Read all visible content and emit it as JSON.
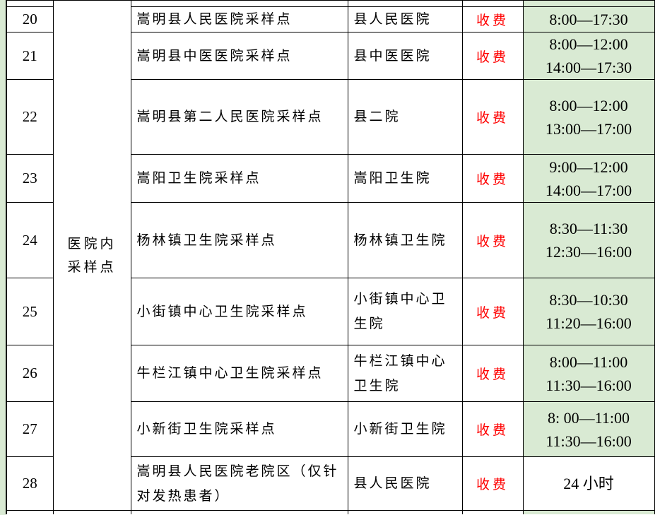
{
  "colors": {
    "highlight_green": "#d9ead3",
    "fee_red": "#ff0000",
    "border_black": "#000000",
    "page_white": "#ffffff"
  },
  "table": {
    "category_label": "医院内采样点",
    "category_lines": [
      "医院内",
      "采样点"
    ],
    "rows": [
      {
        "num": "20",
        "name": "嵩明县人民医院采样点",
        "hospital": "县人民医院",
        "fee": "收费",
        "hours": [
          "8:00—17:30"
        ],
        "hours_highlighted": true
      },
      {
        "num": "21",
        "name": "嵩明县中医医院采样点",
        "hospital": "县中医医院",
        "fee": "收费",
        "hours": [
          "8:00—12:00",
          "14:00—17:30"
        ],
        "hours_highlighted": true
      },
      {
        "num": "22",
        "name": "嵩明县第二人民医院采样点",
        "hospital": "县二院",
        "fee": "收费",
        "hours": [
          "8:00—12:00",
          "13:00—17:00"
        ],
        "hours_highlighted": true
      },
      {
        "num": "23",
        "name": "嵩阳卫生院采样点",
        "hospital": "嵩阳卫生院",
        "fee": "收费",
        "hours": [
          "9:00—12:00",
          "14:00—17:00"
        ],
        "hours_highlighted": true
      },
      {
        "num": "24",
        "name": "杨林镇卫生院采样点",
        "hospital": "杨林镇卫生院",
        "fee": "收费",
        "hours": [
          "8:30—11:30",
          "12:30—16:00"
        ],
        "hours_highlighted": true
      },
      {
        "num": "25",
        "name": "小街镇中心卫生院采样点",
        "hospital": "小街镇中心卫生院",
        "fee": "收费",
        "hours": [
          "8:30—10:30",
          "11:20—16:00"
        ],
        "hours_highlighted": true
      },
      {
        "num": "26",
        "name": "牛栏江镇中心卫生院采样点",
        "hospital": "牛栏江镇中心卫生院",
        "fee": "收费",
        "hours": [
          "8:00—11:00",
          "11:30—16:00"
        ],
        "hours_highlighted": true
      },
      {
        "num": "27",
        "name": "小新街卫生院采样点",
        "hospital": "小新街卫生院",
        "fee": "收费",
        "hours": [
          "8: 00—11:00",
          "11:30—16:00"
        ],
        "hours_highlighted": true
      },
      {
        "num": "28",
        "name": "嵩明县人民医院老院区（仅针对发热患者）",
        "hospital": "县人民医院",
        "fee": "收费",
        "hours": [
          "24 小时"
        ],
        "hours_highlighted": false
      }
    ]
  }
}
